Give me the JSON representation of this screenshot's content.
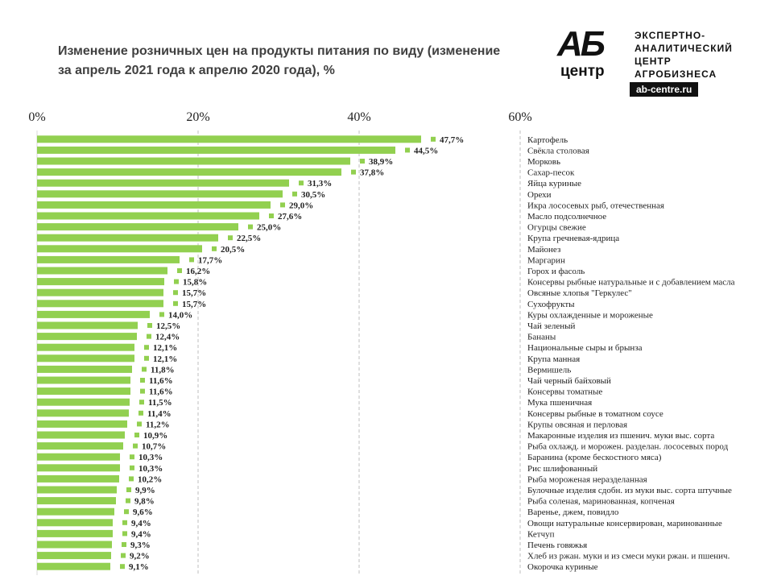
{
  "title": "Изменение розничных цен на продукты питания по виду (изменение за апрель 2021 года к апрелю 2020 года), %",
  "logo": {
    "mark": "АБ",
    "mark_sub": "центр",
    "tagline": "ЭКСПЕРТНО- АНАЛИТИЧЕСКИЙ ЦЕНТР АГРОБИЗНЕСА",
    "url": "ab-centre.ru"
  },
  "colors": {
    "bar": "#92d050",
    "grid": "#bfbfbf"
  },
  "chart_data": {
    "type": "bar",
    "orientation": "horizontal",
    "title": "Изменение розничных цен на продукты питания по виду (изменение за апрель 2021 года к апрелю 2020 года), %",
    "xlim": [
      0,
      60
    ],
    "xticks": [
      "0%",
      "20%",
      "40%",
      "60%"
    ],
    "xtick_values": [
      0,
      20,
      40,
      60
    ],
    "grid": true,
    "categories": [
      "Картофель",
      "Свёкла столовая",
      "Морковь",
      "Сахар-песок",
      "Яйца куриные",
      "Орехи",
      "Икра лососевых рыб, отечественная",
      "Масло подсолнечное",
      "Огурцы свежие",
      "Крупа гречневая-ядрица",
      "Майонез",
      "Маргарин",
      "Горох и фасоль",
      "Консервы рыбные натуральные и с добавлением масла",
      "Овсяные хлопья \"Геркулес\"",
      "Сухофрукты",
      "Куры охлажденные и мороженые",
      "Чай зеленый",
      "Бананы",
      "Национальные сыры и брынза",
      "Крупа манная",
      "Вермишель",
      "Чай черный байховый",
      "Консервы томатные",
      "Мука пшеничная",
      "Консервы рыбные в томатном соусе",
      "Крупы овсяная и перловая",
      "Макаронные изделия из пшенич. муки выс. сорта",
      "Рыба охлажд. и морожен. разделан. лососевых пород",
      "Баранина (кроме бескостного мяса)",
      "Рис шлифованный",
      "Рыба мороженая неразделанная",
      "Булочные изделия сдобн. из муки выс. сорта штучные",
      "Рыба соленая, маринованная, копченая",
      "Варенье, джем, повидло",
      "Овощи натуральные консервирован, маринованные",
      "Кетчуп",
      "Печень говяжья",
      "Хлеб из ржан. муки и из смеси муки ржан. и пшенич.",
      "Окорочка куриные"
    ],
    "values": [
      47.7,
      44.5,
      38.9,
      37.8,
      31.3,
      30.5,
      29.0,
      27.6,
      25.0,
      22.5,
      20.5,
      17.7,
      16.2,
      15.8,
      15.7,
      15.7,
      14.0,
      12.5,
      12.4,
      12.1,
      12.1,
      11.8,
      11.6,
      11.6,
      11.5,
      11.4,
      11.2,
      10.9,
      10.7,
      10.3,
      10.3,
      10.2,
      9.9,
      9.8,
      9.6,
      9.4,
      9.4,
      9.3,
      9.2,
      9.1
    ],
    "value_labels": [
      "47,7%",
      "44,5%",
      "38,9%",
      "37,8%",
      "31,3%",
      "30,5%",
      "29,0%",
      "27,6%",
      "25,0%",
      "22,5%",
      "20,5%",
      "17,7%",
      "16,2%",
      "15,8%",
      "15,7%",
      "15,7%",
      "14,0%",
      "12,5%",
      "12,4%",
      "12,1%",
      "12,1%",
      "11,8%",
      "11,6%",
      "11,6%",
      "11,5%",
      "11,4%",
      "11,2%",
      "10,9%",
      "10,7%",
      "10,3%",
      "10,3%",
      "10,2%",
      "9,9%",
      "9,8%",
      "9,6%",
      "9,4%",
      "9,4%",
      "9,3%",
      "9,2%",
      "9,1%"
    ]
  }
}
